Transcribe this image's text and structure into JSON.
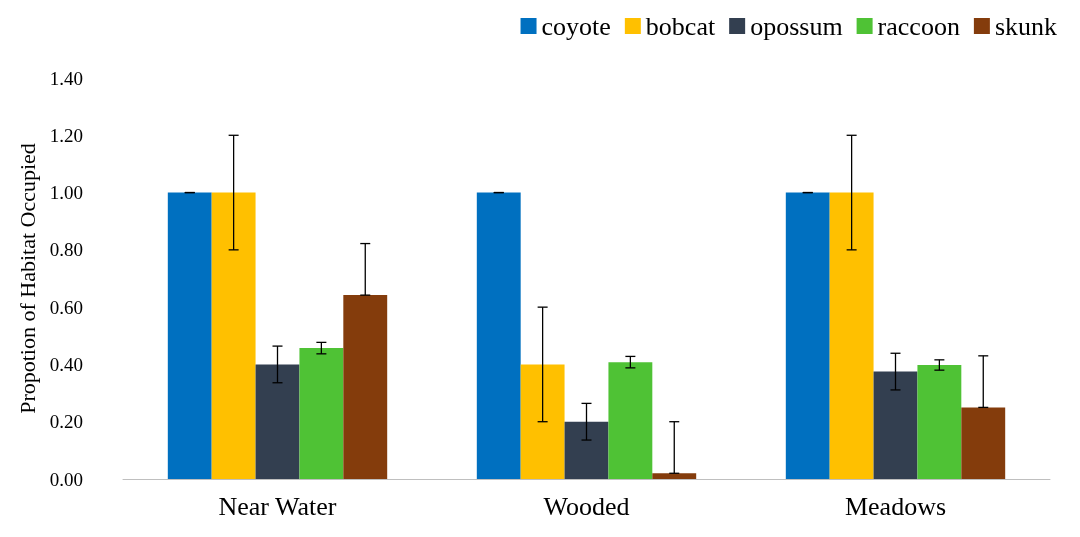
{
  "chart_data": {
    "type": "bar",
    "ylabel": "Propotion of Habitat Occupied",
    "categories": [
      "Near Water",
      "Wooded",
      "Meadows"
    ],
    "series": [
      {
        "name": "coyote",
        "color": "#0070c0",
        "values": [
          1.0,
          1.0,
          1.0
        ],
        "errors": [
          0,
          0,
          0
        ]
      },
      {
        "name": "bobcat",
        "color": "#ffc000",
        "values": [
          1.0,
          0.4,
          1.0
        ],
        "errors": [
          0.2,
          0.2,
          0.2
        ]
      },
      {
        "name": "opossum",
        "color": "#333f50",
        "values": [
          0.4,
          0.2,
          0.375
        ],
        "errors": [
          0.064,
          0.064,
          0.064
        ]
      },
      {
        "name": "raccoon",
        "color": "#4fc235",
        "values": [
          0.457,
          0.408,
          0.398
        ],
        "errors": [
          0.02,
          0.02,
          0.018
        ]
      },
      {
        "name": "skunk",
        "color": "#843c0c",
        "values": [
          0.642,
          0.02,
          0.25
        ],
        "errors": [
          [
            0.642,
            0.822
          ],
          [
            0.02,
            0.2
          ],
          [
            0.25,
            0.43
          ]
        ]
      }
    ],
    "ylim": [
      0,
      1.4
    ],
    "yticks": [
      {
        "value": 0,
        "label": "0.00"
      },
      {
        "value": 0.2,
        "label": "0.20"
      },
      {
        "value": 0.4,
        "label": "0.40"
      },
      {
        "value": 0.6,
        "label": "0.60"
      },
      {
        "value": 0.8,
        "label": "0.80"
      },
      {
        "value": 1.0,
        "label": "1.00"
      },
      {
        "value": 1.2,
        "label": "1.20"
      },
      {
        "value": 1.4,
        "label": "1.40"
      }
    ],
    "grid": false,
    "legend": "top right"
  }
}
